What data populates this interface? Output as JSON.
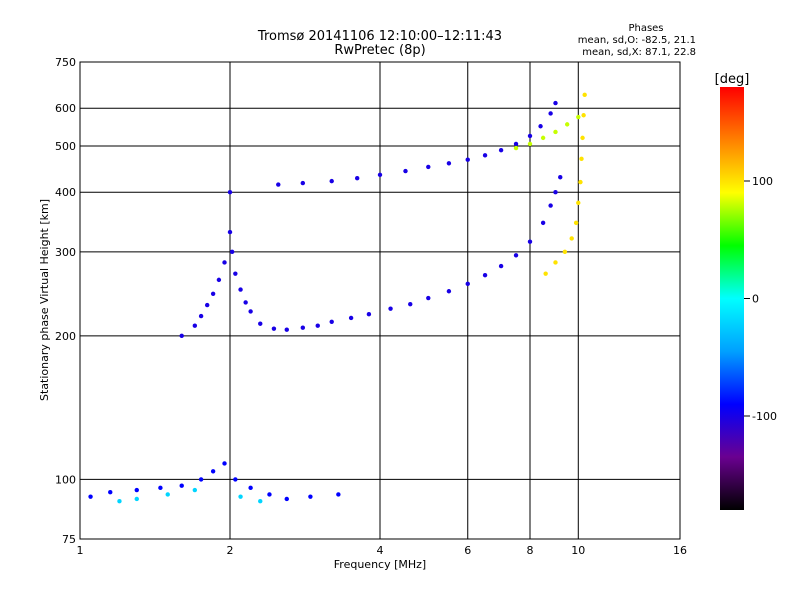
{
  "chart_data": {
    "type": "scatter",
    "title": "Tromsø 20141106 12:10:00–12:11:43",
    "subtitle": "RwPretec (8p)",
    "xlabel": "Frequency [MHz]",
    "ylabel": "Stationary phase Virtual Height [km]",
    "x_scale": "log",
    "y_scale": "log",
    "xlim": [
      1,
      16
    ],
    "ylim": [
      75,
      750
    ],
    "x_ticks": [
      1,
      2,
      4,
      6,
      8,
      10,
      16
    ],
    "x_tick_labels": [
      "1",
      "2",
      "4",
      "6",
      "8",
      "10",
      "16"
    ],
    "y_ticks": [
      75,
      100,
      200,
      300,
      400,
      500,
      600,
      750
    ],
    "y_tick_labels": [
      "75",
      "100",
      "200",
      "300",
      "400",
      "500",
      "600",
      "750"
    ],
    "grid": true,
    "stats": {
      "heading": "Phases",
      "line_o": "mean, sd,O: -82.5, 21.1",
      "line_x": "mean, sd,X: 87.1, 22.8"
    },
    "colorbar": {
      "label": "[deg]",
      "range": [
        -180,
        180
      ],
      "ticks": [
        100,
        0,
        -100
      ],
      "tick_labels": [
        "100",
        "0",
        "-100"
      ],
      "colors": [
        "#000000",
        "#6a0090",
        "#0000ff",
        "#00a0ff",
        "#00ffff",
        "#00ff00",
        "#ffff00",
        "#ff8000",
        "#ff0000"
      ]
    },
    "series": [
      {
        "points": [
          [
            1.6,
            200
          ],
          [
            1.7,
            210
          ],
          [
            1.75,
            220
          ],
          [
            1.8,
            232
          ],
          [
            1.85,
            245
          ],
          [
            1.9,
            262
          ],
          [
            1.95,
            285
          ],
          [
            2.0,
            330
          ],
          [
            2.0,
            400
          ],
          [
            2.02,
            300
          ],
          [
            2.05,
            270
          ],
          [
            2.1,
            250
          ],
          [
            2.15,
            235
          ],
          [
            2.2,
            225
          ],
          [
            2.3,
            212
          ],
          [
            2.45,
            207
          ],
          [
            2.6,
            206
          ],
          [
            2.8,
            208
          ],
          [
            3.0,
            210
          ],
          [
            3.2,
            214
          ],
          [
            3.5,
            218
          ],
          [
            3.8,
            222
          ],
          [
            4.2,
            228
          ],
          [
            4.6,
            233
          ],
          [
            5.0,
            240
          ],
          [
            5.5,
            248
          ],
          [
            6.0,
            257
          ],
          [
            6.5,
            268
          ],
          [
            7.0,
            280
          ],
          [
            7.5,
            295
          ],
          [
            8.0,
            315
          ],
          [
            8.5,
            345
          ],
          [
            8.8,
            375
          ],
          [
            9.0,
            400
          ],
          [
            9.2,
            430
          ]
        ],
        "phase": -100
      },
      {
        "points": [
          [
            8.6,
            270
          ],
          [
            9.0,
            285
          ],
          [
            9.4,
            300
          ],
          [
            9.7,
            320
          ],
          [
            9.9,
            345
          ],
          [
            10.0,
            380
          ],
          [
            10.1,
            420
          ],
          [
            10.15,
            470
          ],
          [
            10.2,
            520
          ],
          [
            10.25,
            580
          ],
          [
            10.3,
            640
          ]
        ],
        "phase": 100
      },
      {
        "points": [
          [
            2.5,
            415
          ],
          [
            2.8,
            418
          ],
          [
            3.2,
            422
          ],
          [
            3.6,
            428
          ],
          [
            4.0,
            435
          ],
          [
            4.5,
            443
          ],
          [
            5.0,
            452
          ],
          [
            5.5,
            460
          ],
          [
            6.0,
            468
          ],
          [
            6.5,
            478
          ],
          [
            7.0,
            490
          ],
          [
            7.5,
            505
          ],
          [
            8.0,
            525
          ],
          [
            8.4,
            550
          ],
          [
            8.8,
            585
          ],
          [
            9.0,
            615
          ]
        ],
        "phase": -100
      },
      {
        "points": [
          [
            7.5,
            495
          ],
          [
            8.0,
            505
          ],
          [
            8.5,
            520
          ],
          [
            9.0,
            535
          ],
          [
            9.5,
            555
          ],
          [
            10.0,
            575
          ]
        ],
        "phase": 80
      },
      {
        "points": [
          [
            1.05,
            92
          ],
          [
            1.15,
            94
          ],
          [
            1.3,
            95
          ],
          [
            1.45,
            96
          ],
          [
            1.6,
            97
          ],
          [
            1.75,
            100
          ],
          [
            1.85,
            104
          ],
          [
            1.95,
            108
          ],
          [
            2.05,
            100
          ],
          [
            2.2,
            96
          ],
          [
            2.4,
            93
          ],
          [
            2.6,
            91
          ],
          [
            2.9,
            92
          ],
          [
            3.3,
            93
          ]
        ],
        "phase": -90
      },
      {
        "points": [
          [
            1.2,
            90
          ],
          [
            1.3,
            91
          ],
          [
            1.5,
            93
          ],
          [
            1.7,
            95
          ],
          [
            2.1,
            92
          ],
          [
            2.3,
            90
          ]
        ],
        "phase": -20
      }
    ]
  }
}
